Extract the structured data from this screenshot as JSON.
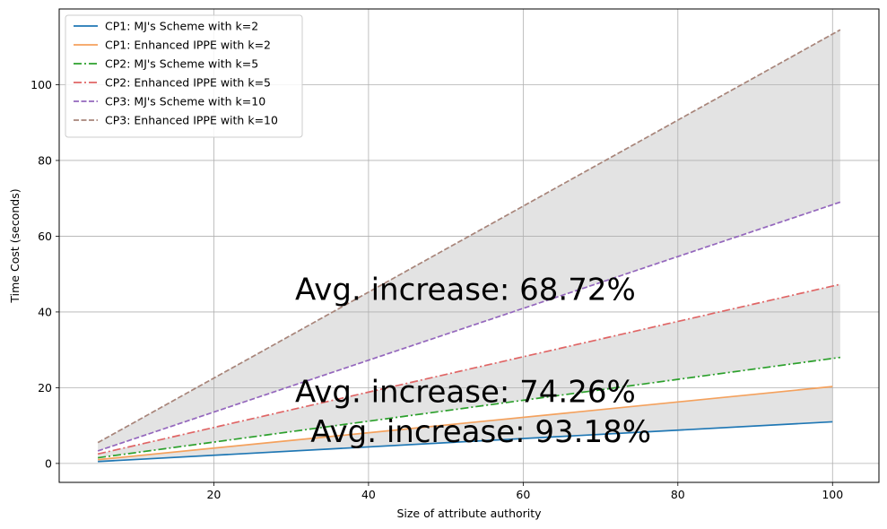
{
  "chart_data": {
    "type": "line",
    "xlabel": "Size of attribute authority",
    "ylabel": "Time Cost (seconds)",
    "xlim": [
      0,
      106
    ],
    "ylim": [
      -5,
      120
    ],
    "xticks": [
      20,
      40,
      60,
      80,
      100
    ],
    "yticks": [
      0,
      20,
      40,
      60,
      80,
      100
    ],
    "grid": true,
    "legend_placement": "upper-left",
    "series": [
      {
        "name": "CP1: MJ's Scheme with k=2",
        "color": "#1f77b4",
        "dash": "solid",
        "x": [
          5,
          100
        ],
        "y": [
          0.5,
          11
        ]
      },
      {
        "name": "CP1: Enhanced IPPE with k=2",
        "color": "#f4a15d",
        "dash": "solid",
        "x": [
          5,
          100
        ],
        "y": [
          1,
          20.3
        ]
      },
      {
        "name": "CP2: MJ's Scheme with k=5",
        "color": "#2ca02c",
        "dash": "dashdot",
        "x": [
          5,
          101
        ],
        "y": [
          1.5,
          28
        ]
      },
      {
        "name": "CP2: Enhanced IPPE with k=5",
        "color": "#e06666",
        "dash": "dashdot",
        "x": [
          5,
          101
        ],
        "y": [
          2.5,
          47.3
        ]
      },
      {
        "name": "CP3: MJ's Scheme with k=10",
        "color": "#9467bd",
        "dash": "dashed",
        "x": [
          5,
          101
        ],
        "y": [
          3.3,
          69
        ]
      },
      {
        "name": "CP3: Enhanced IPPE with k=10",
        "color": "#a8857a",
        "dash": "dashed",
        "x": [
          5,
          101
        ],
        "y": [
          5.5,
          114.5
        ]
      }
    ],
    "fills": [
      {
        "between": [
          0,
          1
        ],
        "color": "#cccccc",
        "opacity": 0.55
      },
      {
        "between": [
          2,
          3
        ],
        "color": "#cccccc",
        "opacity": 0.55
      },
      {
        "between": [
          4,
          5
        ],
        "color": "#cccccc",
        "opacity": 0.55
      }
    ],
    "annotations": [
      {
        "text": "Avg. increase: 68.72%",
        "x": 30.5,
        "y": 46
      },
      {
        "text": "Avg. increase: 74.26%",
        "x": 30.5,
        "y": 19
      },
      {
        "text": "Avg. increase: 93.18%",
        "x": 32.5,
        "y": 8.5
      }
    ]
  }
}
